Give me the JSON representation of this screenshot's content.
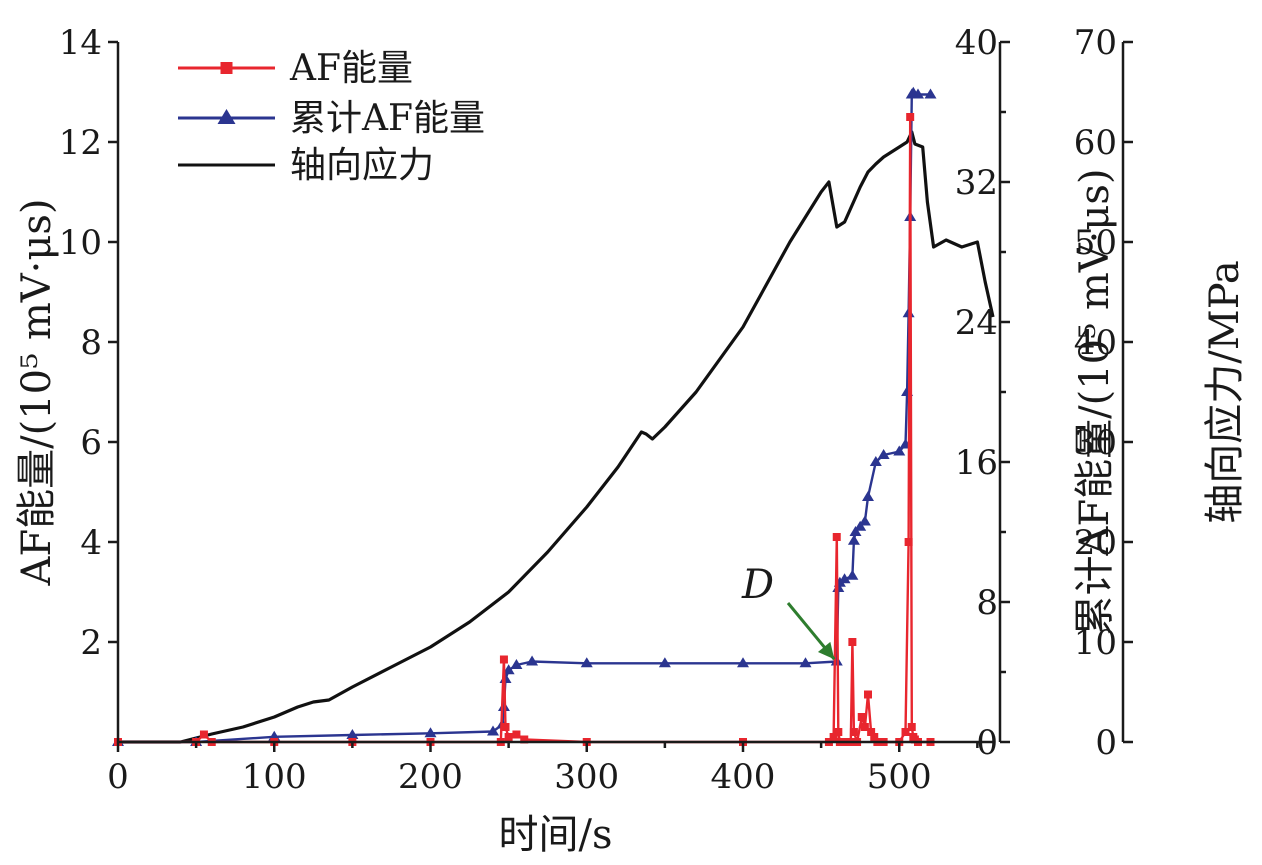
{
  "chart_data": {
    "type": "line",
    "xlabel": "时间/s",
    "ylabel_left": "AF能量/(10⁵ mV·μs)",
    "ylabel_right1": "累计AF能量/(10⁵ mV·μs)",
    "ylabel_right2": "轴向应力/MPa",
    "xlim": [
      0,
      560
    ],
    "ylim_left": [
      0,
      14
    ],
    "ylim_right1": [
      0,
      40
    ],
    "ylim_right2": [
      0,
      70
    ],
    "x_ticks": [
      0,
      100,
      200,
      300,
      400,
      500
    ],
    "left_ticks": [
      2,
      4,
      6,
      8,
      10,
      12,
      14
    ],
    "right1_ticks": [
      0,
      8,
      16,
      24,
      32,
      40
    ],
    "right2_ticks": [
      0,
      10,
      20,
      30,
      40,
      50,
      60,
      70
    ],
    "legend_position": "top-left",
    "annotation": {
      "text": "D",
      "x": 461,
      "y_right1": 4.5
    },
    "series": [
      {
        "name": "AF能量",
        "axis": "left",
        "color": "#e8262e",
        "marker": "square",
        "x": [
          0,
          50,
          55,
          60,
          100,
          150,
          200,
          245,
          247,
          248,
          250,
          255,
          260,
          300,
          400,
          455,
          458,
          460,
          461,
          462,
          465,
          469,
          470,
          471,
          473,
          476,
          478,
          480,
          482,
          484,
          486,
          490,
          500,
          504,
          506,
          507,
          508,
          509,
          510,
          512,
          520
        ],
        "values": [
          0,
          0,
          0.15,
          0,
          0,
          0,
          0,
          0,
          1.65,
          0.3,
          0.1,
          0.15,
          0.05,
          0,
          0,
          0,
          0.1,
          4.1,
          0.2,
          0,
          0,
          0,
          2.0,
          0.2,
          0,
          0.5,
          0.3,
          0.95,
          0.2,
          0.1,
          0,
          0,
          0,
          0.2,
          4.0,
          12.5,
          0.3,
          0.1,
          0.05,
          0,
          0
        ]
      },
      {
        "name": "累计AF能量",
        "axis": "right1",
        "color": "#2b3590",
        "marker": "triangle",
        "x": [
          0,
          50,
          100,
          150,
          200,
          240,
          246,
          247,
          248,
          250,
          255,
          265,
          300,
          350,
          400,
          440,
          460,
          461,
          462,
          465,
          470,
          471,
          472,
          475,
          478,
          480,
          485,
          490,
          500,
          504,
          505,
          506,
          507,
          508,
          509,
          512,
          520
        ],
        "values": [
          0,
          0,
          0.3,
          0.4,
          0.5,
          0.6,
          1.0,
          2.0,
          3.6,
          4.1,
          4.4,
          4.6,
          4.5,
          4.5,
          4.5,
          4.5,
          4.6,
          8.8,
          9.1,
          9.3,
          9.5,
          11.5,
          12.0,
          12.3,
          12.6,
          14.0,
          16.0,
          16.4,
          16.6,
          17.0,
          20.0,
          24.5,
          30.0,
          37.0,
          37.1,
          37.0,
          37.0
        ]
      },
      {
        "name": "轴向应力",
        "axis": "right2",
        "color": "#111111",
        "marker": "none",
        "x": [
          0,
          40,
          60,
          80,
          100,
          115,
          125,
          135,
          150,
          175,
          200,
          225,
          250,
          275,
          300,
          320,
          335,
          338,
          342,
          350,
          370,
          400,
          430,
          450,
          455,
          460,
          465,
          475,
          480,
          485,
          490,
          500,
          505,
          508,
          510,
          515,
          518,
          522,
          530,
          540,
          550,
          555,
          560
        ],
        "values": [
          0,
          0,
          0.8,
          1.5,
          2.5,
          3.5,
          4.0,
          4.2,
          5.5,
          7.5,
          9.5,
          12.0,
          15.0,
          19.0,
          23.5,
          27.5,
          31.0,
          30.8,
          30.3,
          31.5,
          35.0,
          41.5,
          50.0,
          55.0,
          56.0,
          51.5,
          52.0,
          55.5,
          57.0,
          57.8,
          58.5,
          59.5,
          60.0,
          61.0,
          59.8,
          59.5,
          54.0,
          49.5,
          50.2,
          49.5,
          50.0,
          46.0,
          42.5
        ]
      }
    ]
  }
}
